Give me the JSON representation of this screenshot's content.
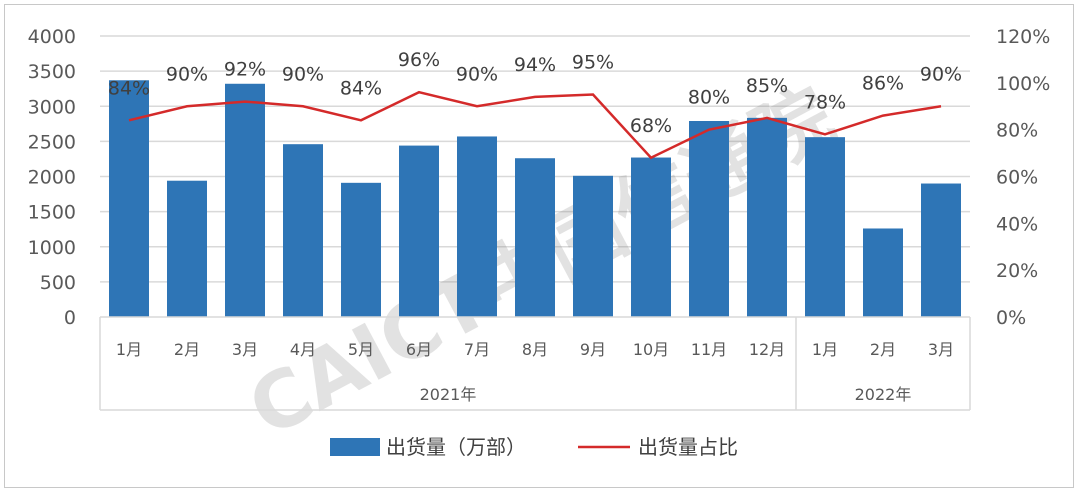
{
  "chart_data": {
    "type": "bar+line",
    "categories": [
      "1月",
      "2月",
      "3月",
      "4月",
      "5月",
      "6月",
      "7月",
      "8月",
      "9月",
      "10月",
      "11月",
      "12月",
      "1月",
      "2月",
      "3月"
    ],
    "groups": [
      {
        "label": "2021年",
        "count": 12
      },
      {
        "label": "2022年",
        "count": 3
      }
    ],
    "series": [
      {
        "name": "出货量（万部）",
        "type": "bar",
        "axis": "left",
        "color": "#2e75b6",
        "values": [
          3370,
          1940,
          3320,
          2460,
          1910,
          2440,
          2570,
          2260,
          2010,
          2270,
          2790,
          2835,
          2560,
          1260,
          1900
        ]
      },
      {
        "name": "出货量占比",
        "type": "line",
        "axis": "right",
        "color": "#d42a2a",
        "values": [
          84,
          90,
          92,
          90,
          84,
          96,
          90,
          94,
          95,
          68,
          80,
          85,
          78,
          86,
          90
        ],
        "labels": [
          "84%",
          "90%",
          "92%",
          "90%",
          "84%",
          "96%",
          "90%",
          "94%",
          "95%",
          "68%",
          "80%",
          "85%",
          "78%",
          "86%",
          "90%"
        ]
      }
    ],
    "left_axis": {
      "ylim": [
        0,
        4000
      ],
      "ticks": [
        "0",
        "500",
        "1000",
        "1500",
        "2000",
        "2500",
        "3000",
        "3500",
        "4000"
      ]
    },
    "right_axis": {
      "ylim": [
        0,
        120
      ],
      "ticks": [
        "0%",
        "20%",
        "40%",
        "60%",
        "80%",
        "100%",
        "120%"
      ]
    },
    "grid": true,
    "legend_position": "bottom"
  },
  "watermark": "CAICT中国信通院"
}
